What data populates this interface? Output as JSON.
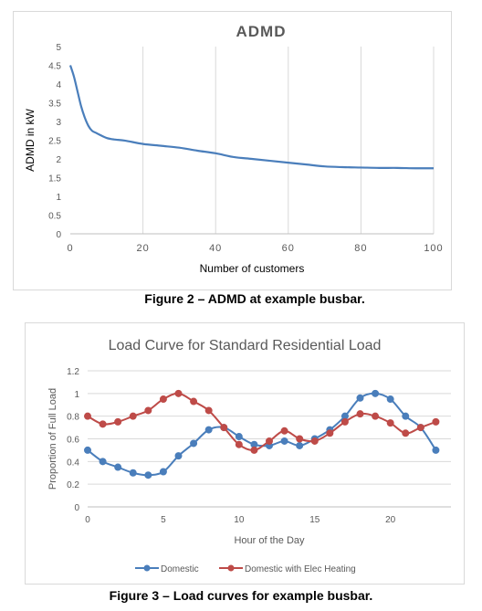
{
  "chart_data": [
    {
      "type": "line",
      "title": "ADMD",
      "xlabel": "Number of customers",
      "ylabel": "ADMD in kW",
      "xlim": [
        0,
        100
      ],
      "ylim": [
        0,
        5
      ],
      "x_ticks": [
        0,
        20,
        40,
        60,
        80,
        100
      ],
      "y_ticks": [
        "0",
        "0.5",
        "1",
        "1.5",
        "2",
        "2.5",
        "3",
        "3.5",
        "4",
        "4.5",
        "5"
      ],
      "grid": "vertical",
      "color": "#4a7ebb",
      "x": [
        0,
        1,
        2,
        3,
        4,
        5,
        6,
        7,
        8,
        10,
        12,
        15,
        20,
        25,
        30,
        35,
        40,
        45,
        50,
        55,
        60,
        65,
        70,
        75,
        80,
        85,
        90,
        95,
        100
      ],
      "values": [
        4.5,
        4.2,
        3.8,
        3.4,
        3.1,
        2.88,
        2.75,
        2.7,
        2.65,
        2.56,
        2.52,
        2.49,
        2.4,
        2.35,
        2.3,
        2.22,
        2.15,
        2.05,
        2.0,
        1.95,
        1.9,
        1.85,
        1.8,
        1.78,
        1.77,
        1.76,
        1.76,
        1.75,
        1.75
      ]
    },
    {
      "type": "line",
      "title": "Load Curve for Standard Residential Load",
      "xlabel": "Hour of the Day",
      "ylabel": "Proportion of Full Load",
      "xlim": [
        0,
        24
      ],
      "ylim": [
        0,
        1.2
      ],
      "x_ticks": [
        0,
        5,
        10,
        15,
        20
      ],
      "y_ticks": [
        "0",
        "0.2",
        "0.4",
        "0.6",
        "0.8",
        "1",
        "1.2"
      ],
      "grid": "horizontal",
      "legend": "bottom",
      "x": [
        0,
        1,
        2,
        3,
        4,
        5,
        6,
        7,
        8,
        9,
        10,
        11,
        12,
        13,
        14,
        15,
        16,
        17,
        18,
        19,
        20,
        21,
        22,
        23
      ],
      "series": [
        {
          "name": "Domestic",
          "color": "#4a7ebb",
          "values": [
            0.5,
            0.4,
            0.35,
            0.3,
            0.28,
            0.31,
            0.45,
            0.56,
            0.68,
            0.7,
            0.62,
            0.55,
            0.54,
            0.58,
            0.54,
            0.6,
            0.68,
            0.8,
            0.96,
            1.0,
            0.95,
            0.8,
            0.7,
            0.5
          ]
        },
        {
          "name": "Domestic with Elec Heating",
          "color": "#be4b48",
          "values": [
            0.8,
            0.73,
            0.75,
            0.8,
            0.85,
            0.95,
            1.0,
            0.93,
            0.85,
            0.7,
            0.55,
            0.5,
            0.58,
            0.67,
            0.6,
            0.58,
            0.65,
            0.75,
            0.82,
            0.8,
            0.74,
            0.65,
            0.7,
            0.75
          ]
        }
      ]
    }
  ],
  "captions": {
    "figure2": "Figure 2 – ADMD at example busbar.",
    "figure3": "Figure 3 – Load curves for example busbar."
  }
}
